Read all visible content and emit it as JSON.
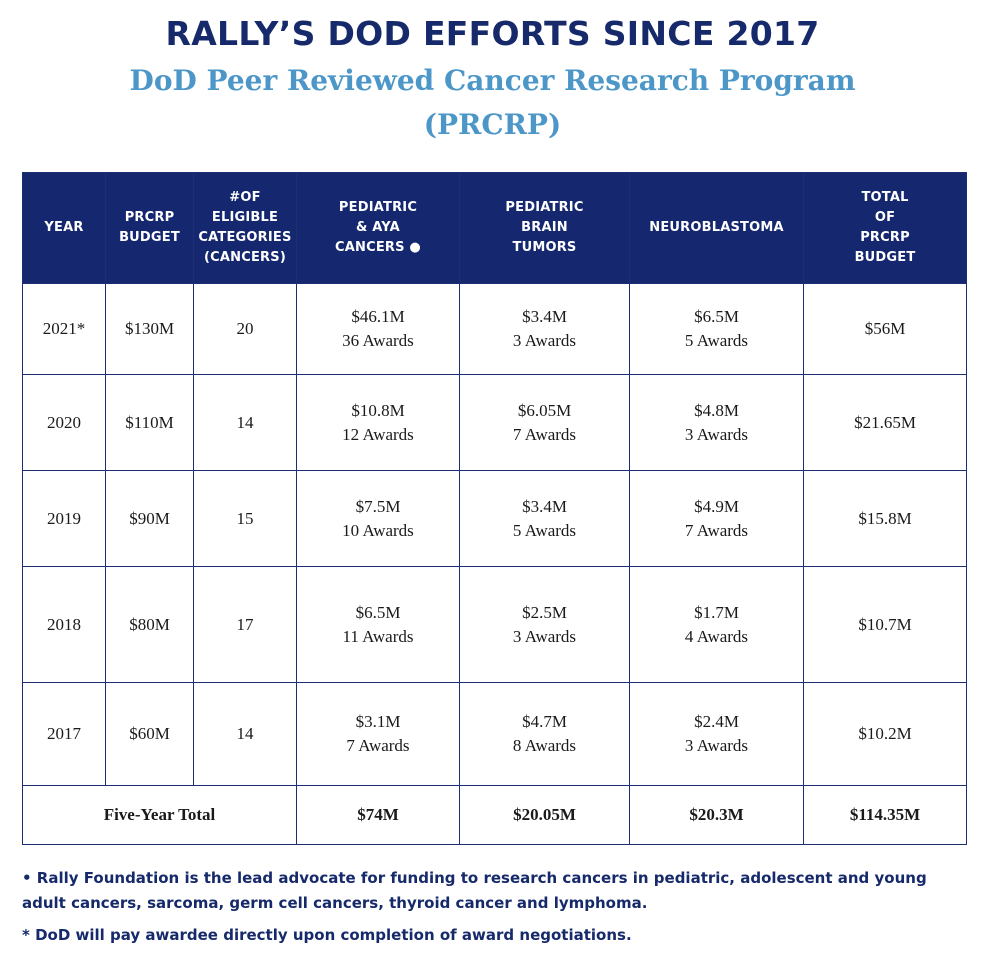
{
  "header": {
    "title": "RALLY’S DOD EFFORTS SINCE 2017",
    "subtitle_line1": "DoD Peer Reviewed Cancer Research Program",
    "subtitle_line2": "(PRCRP)"
  },
  "table": {
    "columns": {
      "year": [
        "YEAR"
      ],
      "budget": [
        "PRCRP",
        "BUDGET"
      ],
      "categories": [
        "#OF",
        "ELIGIBLE",
        "CATEGORIES",
        "(CANCERS)"
      ],
      "pediatric_aya": [
        "PEDIATRIC",
        "& AYA",
        "CANCERS ●"
      ],
      "brain": [
        "PEDIATRIC",
        "BRAIN",
        "TUMORS"
      ],
      "neuro": [
        "NEUROBLASTOMA"
      ],
      "total": [
        "TOTAL",
        "OF",
        "PRCRP",
        "BUDGET"
      ]
    },
    "rows": [
      {
        "year": "2021*",
        "budget": "$130M",
        "categories": "20",
        "aya_amount": "$46.1M",
        "aya_awards": "36 Awards",
        "brain_amount": "$3.4M",
        "brain_awards": "3 Awards",
        "neuro_amount": "$6.5M",
        "neuro_awards": "5 Awards",
        "total": "$56M"
      },
      {
        "year": "2020",
        "budget": "$110M",
        "categories": "14",
        "aya_amount": "$10.8M",
        "aya_awards": "12 Awards",
        "brain_amount": "$6.05M",
        "brain_awards": "7 Awards",
        "neuro_amount": "$4.8M",
        "neuro_awards": "3 Awards",
        "total": "$21.65M"
      },
      {
        "year": "2019",
        "budget": "$90M",
        "categories": "15",
        "aya_amount": "$7.5M",
        "aya_awards": "10 Awards",
        "brain_amount": "$3.4M",
        "brain_awards": "5 Awards",
        "neuro_amount": "$4.9M",
        "neuro_awards": "7 Awards",
        "total": "$15.8M"
      },
      {
        "year": "2018",
        "budget": "$80M",
        "categories": "17",
        "aya_amount": "$6.5M",
        "aya_awards": "11 Awards",
        "brain_amount": "$2.5M",
        "brain_awards": "3 Awards",
        "neuro_amount": "$1.7M",
        "neuro_awards": "4 Awards",
        "total": "$10.7M"
      },
      {
        "year": "2017",
        "budget": "$60M",
        "categories": "14",
        "aya_amount": "$3.1M",
        "aya_awards": "7 Awards",
        "brain_amount": "$4.7M",
        "brain_awards": "8 Awards",
        "neuro_amount": "$2.4M",
        "neuro_awards": "3 Awards",
        "total": "$10.2M"
      }
    ],
    "totals": {
      "label": "Five-Year Total",
      "aya": "$74M",
      "brain": "$20.05M",
      "neuro": "$20.3M",
      "total": "$114.35M"
    }
  },
  "footnotes": {
    "note1": "• Rally Foundation is the lead advocate for funding to research cancers in pediatric, adolescent and young adult cancers, sarcoma, germ cell cancers, thyroid cancer and lymphoma.",
    "note2": "* DoD will pay awardee directly upon completion of award negotiations."
  }
}
